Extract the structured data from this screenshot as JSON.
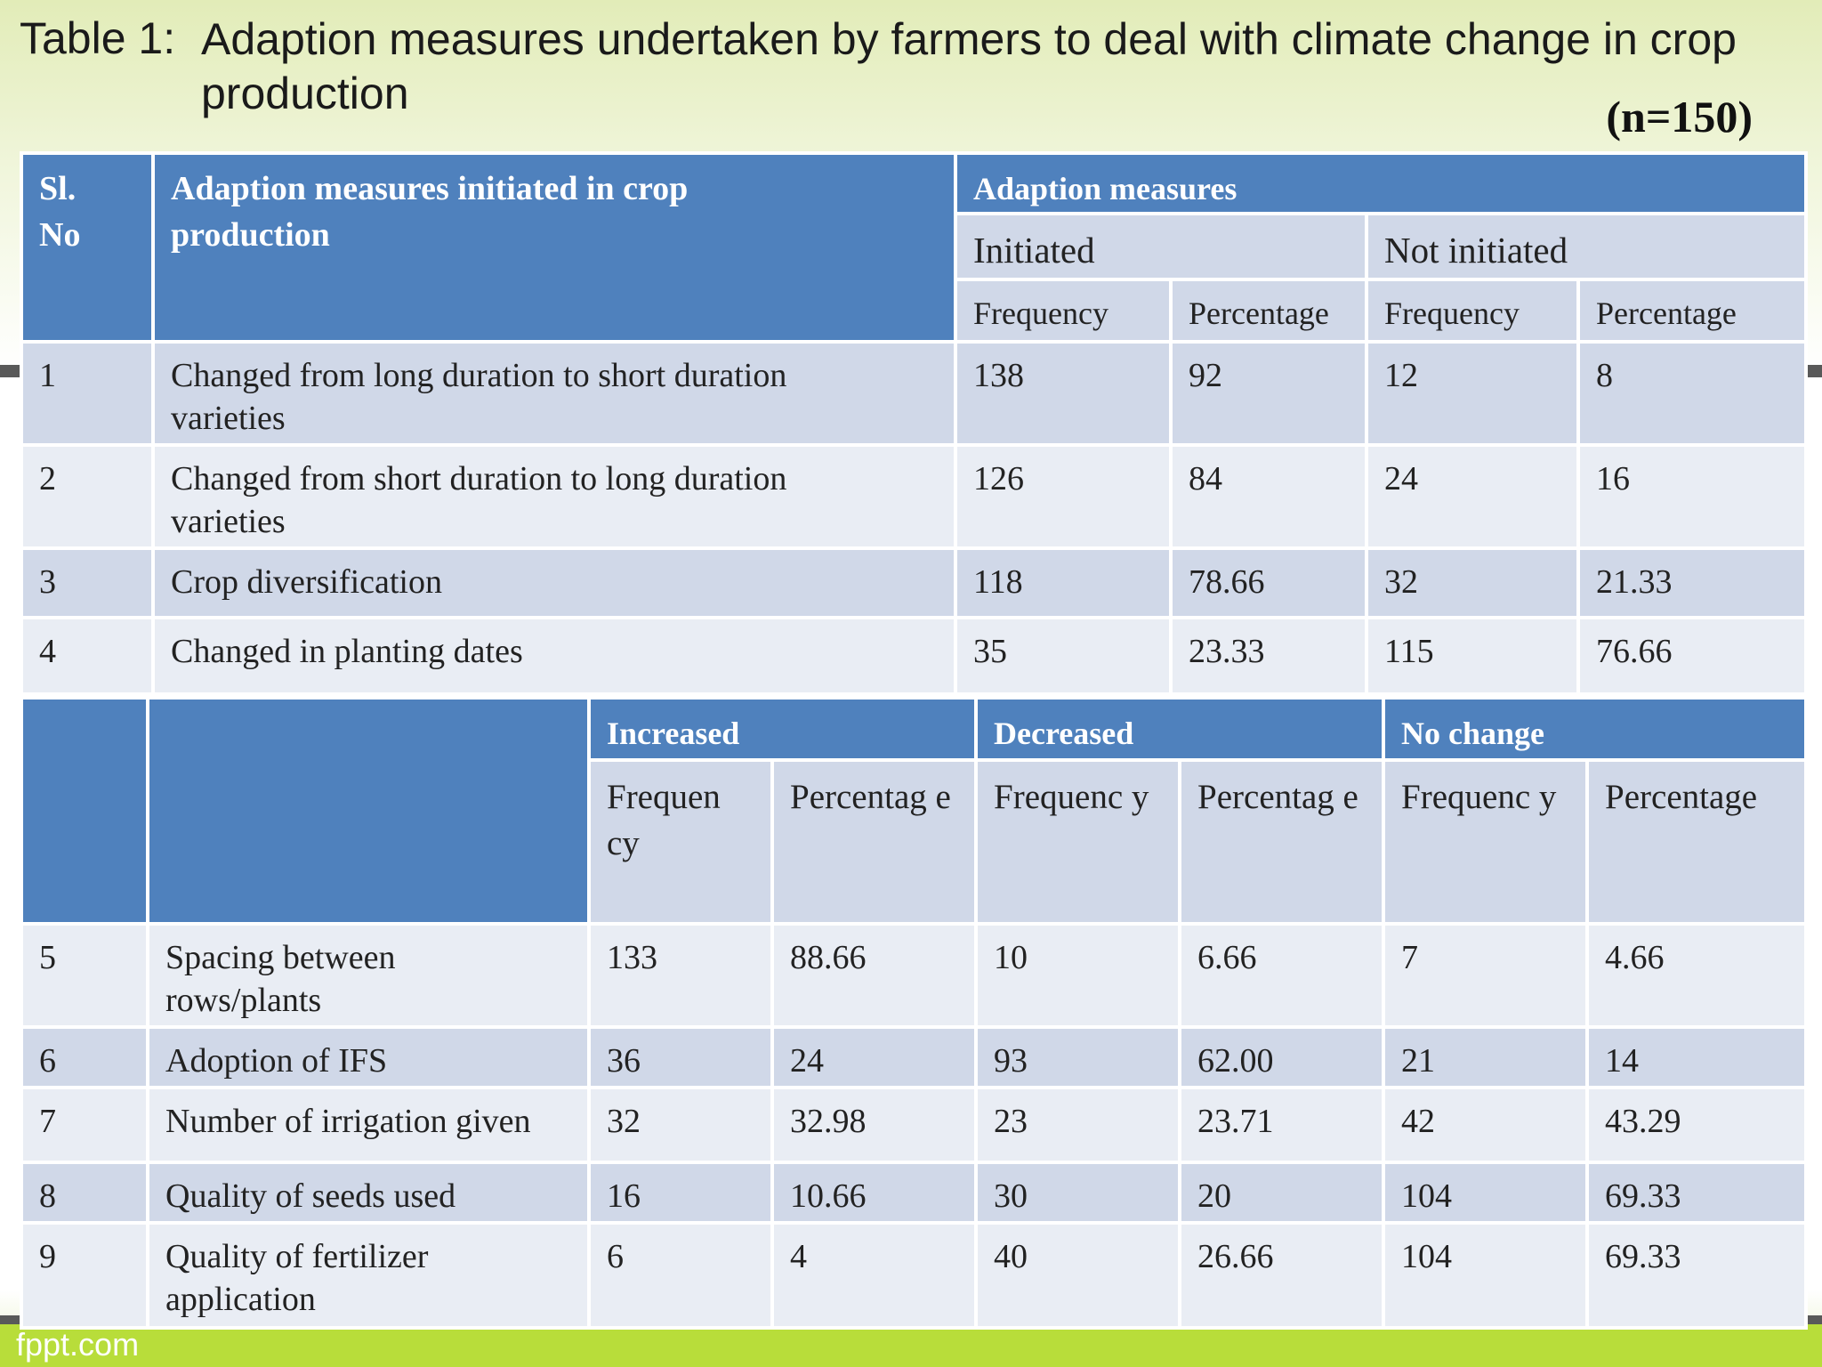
{
  "title": {
    "prefix": "Table 1:",
    "text": "Adaption measures undertaken by farmers to deal with climate change in crop production",
    "sample": "(n=150)"
  },
  "table1": {
    "header": {
      "sl_no": "Sl. No",
      "measure": "Adaption measures initiated in crop production",
      "group": "Adaption measures",
      "initiated": "Initiated",
      "not_initiated": "Not initiated",
      "frequency": "Frequency",
      "percentage": "Percentage"
    },
    "rows": [
      {
        "sl": "1",
        "measure": "Changed from long duration to short duration varieties",
        "init_freq": "138",
        "init_pct": "92",
        "not_freq": "12",
        "not_pct": "8"
      },
      {
        "sl": "2",
        "measure": "Changed from short duration to long duration varieties",
        "init_freq": "126",
        "init_pct": "84",
        "not_freq": "24",
        "not_pct": "16"
      },
      {
        "sl": "3",
        "measure": "Crop diversification",
        "init_freq": "118",
        "init_pct": "78.66",
        "not_freq": "32",
        "not_pct": "21.33"
      },
      {
        "sl": "4",
        "measure": "Changed in planting dates",
        "init_freq": "35",
        "init_pct": "23.33",
        "not_freq": "115",
        "not_pct": "76.66"
      }
    ]
  },
  "table2": {
    "header": {
      "increased": "Increased",
      "decreased": "Decreased",
      "no_change": "No change",
      "freq_a": "Frequen cy",
      "pct_a": "Percentag e",
      "freq_b": "Frequenc y",
      "pct_b": "Percentag e",
      "freq_c": "Frequenc y",
      "pct_c": "Percentage"
    },
    "rows": [
      {
        "sl": "5",
        "measure": "Spacing between rows/plants",
        "inc_freq": "133",
        "inc_pct": "88.66",
        "dec_freq": "10",
        "dec_pct": "6.66",
        "nc_freq": "7",
        "nc_pct": "4.66"
      },
      {
        "sl": "6",
        "measure": "Adoption of IFS",
        "inc_freq": "36",
        "inc_pct": "24",
        "dec_freq": "93",
        "dec_pct": "62.00",
        "nc_freq": "21",
        "nc_pct": "14"
      },
      {
        "sl": "7",
        "measure": "Number of irrigation given",
        "inc_freq": "32",
        "inc_pct": "32.98",
        "dec_freq": "23",
        "dec_pct": "23.71",
        "nc_freq": "42",
        "nc_pct": "43.29"
      },
      {
        "sl": "8",
        "measure": "Quality of seeds used",
        "inc_freq": "16",
        "inc_pct": "10.66",
        "dec_freq": "30",
        "dec_pct": "20",
        "nc_freq": "104",
        "nc_pct": "69.33"
      },
      {
        "sl": "9",
        "measure": "Quality of fertilizer application",
        "inc_freq": "6",
        "inc_pct": "4",
        "dec_freq": "40",
        "dec_pct": "26.66",
        "nc_freq": "104",
        "nc_pct": "69.33"
      }
    ]
  },
  "footer": {
    "logo": "fppt.com"
  }
}
